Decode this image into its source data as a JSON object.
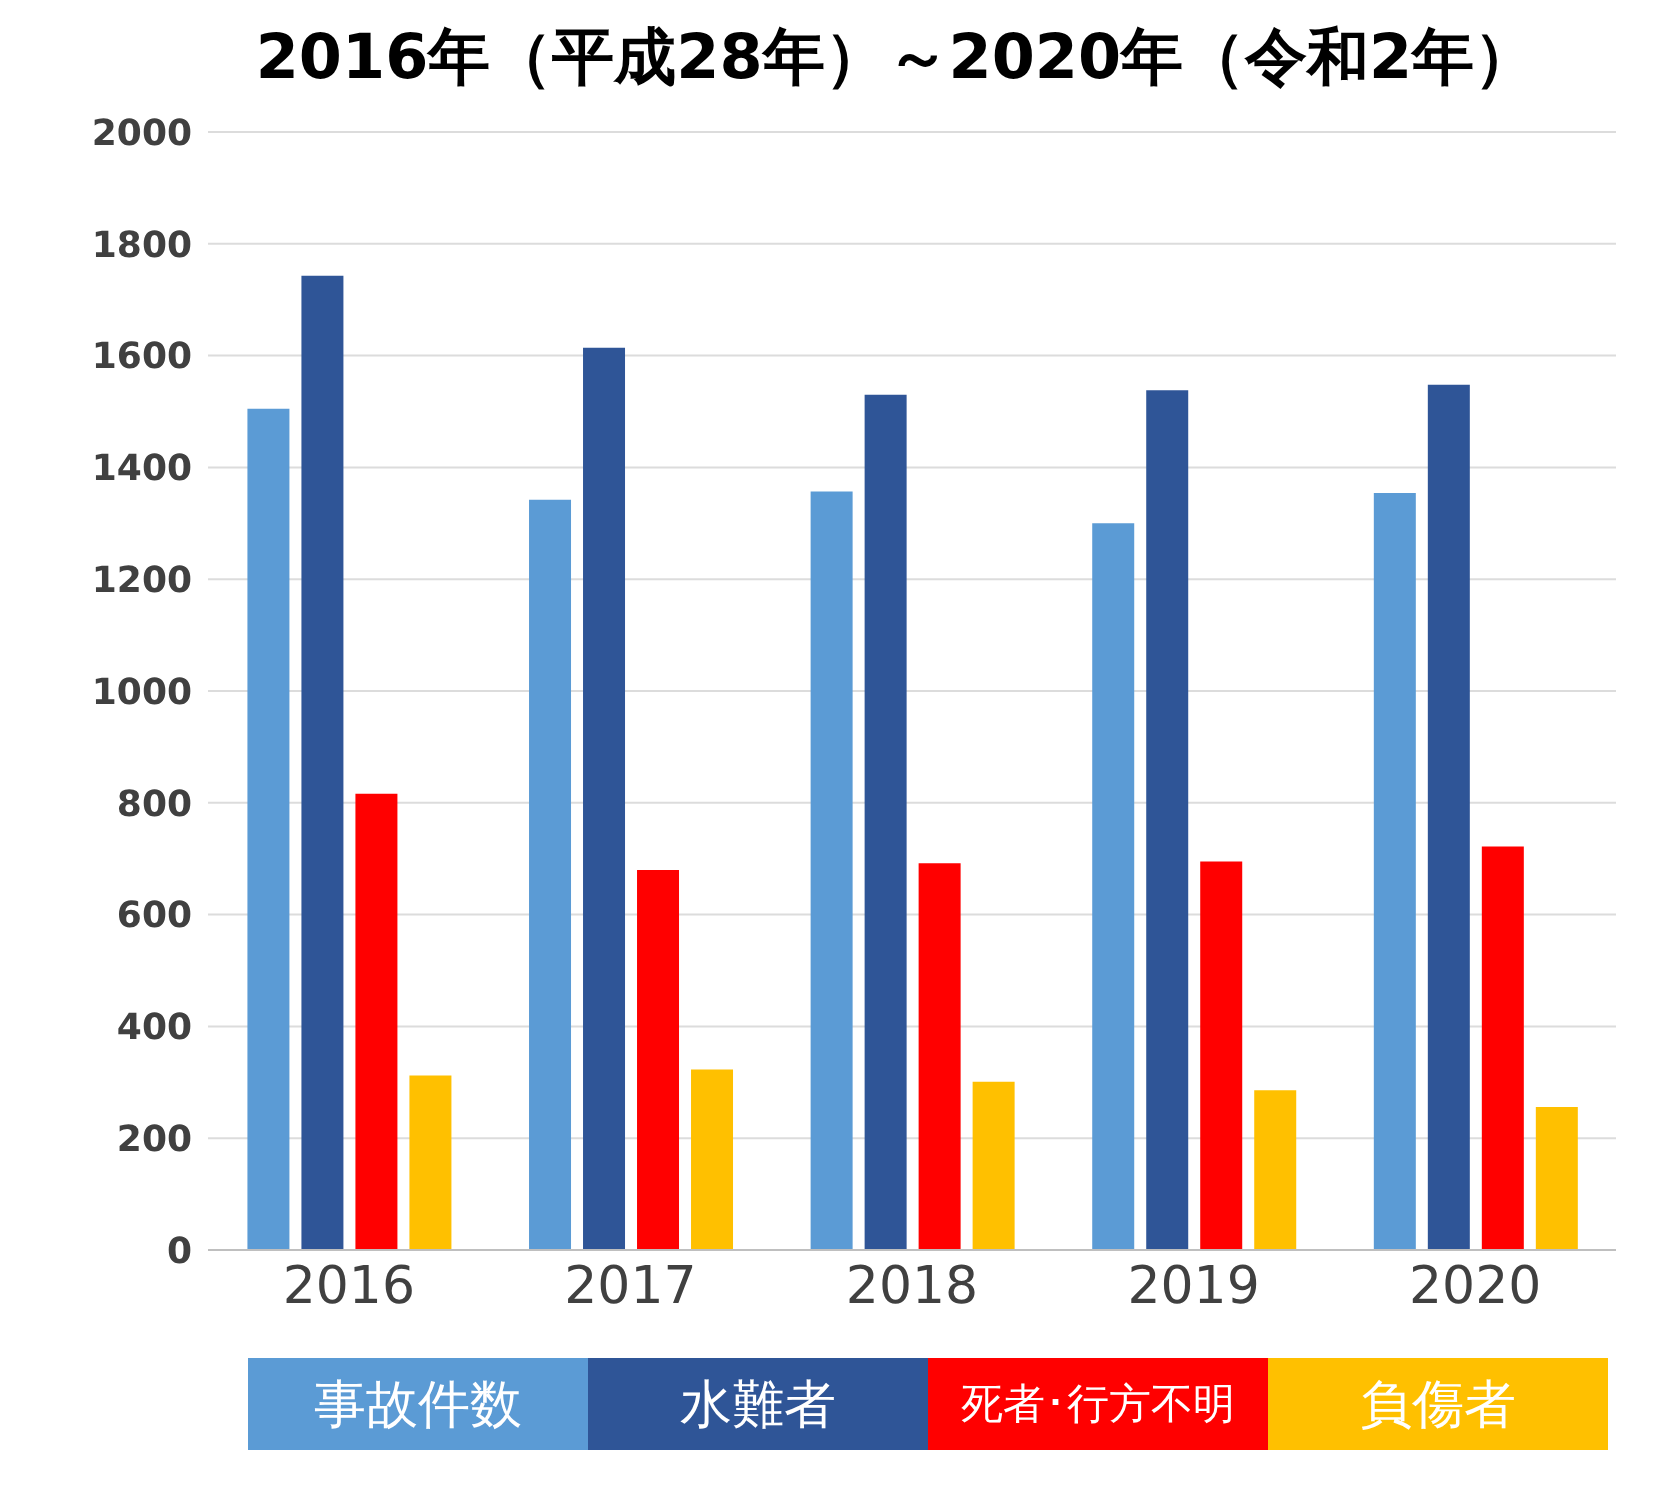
{
  "chart_data": {
    "type": "bar",
    "title": "2016年（平成28年）～2020年（令和2年）",
    "categories": [
      "2016",
      "2017",
      "2018",
      "2019",
      "2020"
    ],
    "series": [
      {
        "name": "事故件数",
        "color": "#5b9bd5",
        "values": [
          1505,
          1342,
          1357,
          1300,
          1354
        ]
      },
      {
        "name": "水難者",
        "color": "#2f5597",
        "values": [
          1743,
          1614,
          1530,
          1538,
          1548
        ]
      },
      {
        "name": "死者･行方不明",
        "color": "#ff0000",
        "values": [
          816,
          680,
          692,
          695,
          722
        ]
      },
      {
        "name": "負傷者",
        "color": "#ffc000",
        "values": [
          312,
          323,
          301,
          286,
          256
        ]
      }
    ],
    "ylim": [
      0,
      2000
    ],
    "yticks": [
      0,
      200,
      400,
      600,
      800,
      1000,
      1200,
      1400,
      1600,
      1800,
      2000
    ],
    "grid": "y",
    "legend": "bottom"
  }
}
